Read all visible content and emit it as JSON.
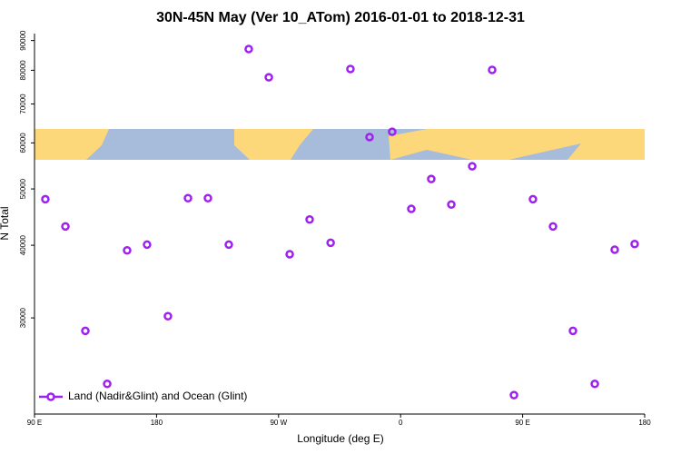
{
  "chart_data": {
    "type": "scatter",
    "title": "30N-45N May (Ver 10_ATom)   2016-01-01 to 2018-12-31",
    "x_label": "Longitude (deg E)",
    "y_label": "N Total",
    "ylog": true,
    "xlim": [
      90,
      540
    ],
    "ylim": [
      20500,
      92500
    ],
    "xticks": [
      {
        "value": 90,
        "label": "90 E"
      },
      180,
      {
        "value": 270,
        "label": "90 W"
      },
      {
        "value": 360,
        "label": "0"
      },
      {
        "value": 450,
        "label": "90 E"
      },
      {
        "value": 540,
        "label": "180"
      }
    ],
    "yticks": [
      30000,
      40000,
      50000,
      60000,
      70000,
      80000,
      90000
    ],
    "legend_position": "bottom-left",
    "series": [
      {
        "name": "Land (Nadir&Glint) and Ocean (Glint)",
        "color": "#a020f0",
        "x": [
          98,
          112.8,
          127.5,
          143.6,
          158.3,
          173,
          188.4,
          203.2,
          217.9,
          233.3,
          248,
          262.8,
          278.2,
          292.9,
          308.4,
          323,
          337.1,
          353.8,
          367.9,
          382.6,
          397.4,
          412.8,
          427.5,
          443.6,
          457.6,
          472.4,
          487.1,
          503.2,
          517.9,
          532.6
        ],
        "values": [
          48000,
          43100,
          28500,
          23100,
          39200,
          40100,
          30200,
          48200,
          48200,
          40100,
          87000,
          77800,
          38600,
          44300,
          40400,
          80400,
          61400,
          62700,
          46200,
          52000,
          47000,
          54700,
          80100,
          22100,
          48000,
          43100,
          28500,
          23100,
          39300,
          40200
        ]
      }
    ]
  }
}
